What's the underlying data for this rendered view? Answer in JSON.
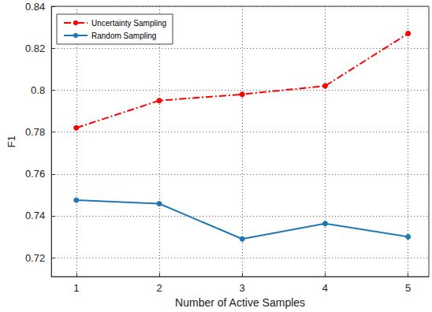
{
  "chart_data": {
    "type": "line",
    "x_label": "Number of Active Samples",
    "y_label": "F1",
    "x": [
      1,
      2,
      3,
      4,
      5
    ],
    "series": [
      {
        "name": "Uncertainty Sampling",
        "color": "#ff0000",
        "marker": "circle",
        "line_style": "dashdot",
        "values": [
          0.782,
          0.795,
          0.798,
          0.802,
          0.827
        ]
      },
      {
        "name": "Random Sampling",
        "color": "#1f77b4",
        "marker": "circle",
        "line_style": "solid",
        "values": [
          0.7475,
          0.7458,
          0.729,
          0.7363,
          0.73
        ]
      }
    ],
    "xlim": [
      0.7,
      5.25
    ],
    "xticks": [
      1,
      2,
      3,
      4,
      5
    ],
    "ylim": [
      0.711,
      0.84
    ],
    "yticks": [
      0.72,
      0.74,
      0.76,
      0.78,
      0.8,
      0.82,
      0.84
    ],
    "grid": true,
    "legend": "top-left"
  }
}
